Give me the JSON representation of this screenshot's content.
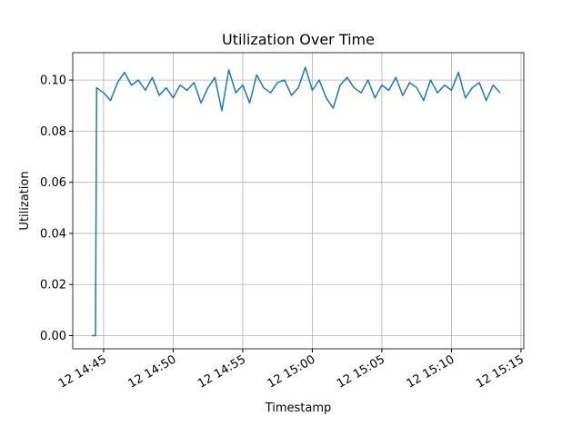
{
  "chart_data": {
    "type": "line",
    "title": "Utilization Over Time",
    "x_label": "Timestamp",
    "y_label": "Utilization",
    "x": [
      "12 14:44:10",
      "12 14:44:25",
      "12 14:44:30",
      "12 14:45:00",
      "12 14:45:30",
      "12 14:46:00",
      "12 14:46:30",
      "12 14:47:00",
      "12 14:47:30",
      "12 14:48:00",
      "12 14:48:30",
      "12 14:49:00",
      "12 14:49:30",
      "12 14:50:00",
      "12 14:50:30",
      "12 14:51:00",
      "12 14:51:30",
      "12 14:52:00",
      "12 14:52:30",
      "12 14:53:00",
      "12 14:53:30",
      "12 14:54:00",
      "12 14:54:30",
      "12 14:55:00",
      "12 14:55:30",
      "12 14:56:00",
      "12 14:56:30",
      "12 14:57:00",
      "12 14:57:30",
      "12 14:58:00",
      "12 14:58:30",
      "12 14:59:00",
      "12 14:59:30",
      "12 15:00:00",
      "12 15:00:30",
      "12 15:01:00",
      "12 15:01:30",
      "12 15:02:00",
      "12 15:02:30",
      "12 15:03:00",
      "12 15:03:30",
      "12 15:04:00",
      "12 15:04:30",
      "12 15:05:00",
      "12 15:05:30",
      "12 15:06:00",
      "12 15:06:30",
      "12 15:07:00",
      "12 15:07:30",
      "12 15:08:00",
      "12 15:08:30",
      "12 15:09:00",
      "12 15:09:30",
      "12 15:10:00",
      "12 15:10:30",
      "12 15:11:00",
      "12 15:11:30",
      "12 15:12:00",
      "12 15:12:30",
      "12 15:13:00",
      "12 15:13:30"
    ],
    "values": [
      0,
      0,
      0.097,
      0.095,
      0.092,
      0.099,
      0.103,
      0.098,
      0.1,
      0.096,
      0.101,
      0.094,
      0.097,
      0.093,
      0.098,
      0.096,
      0.099,
      0.091,
      0.097,
      0.101,
      0.088,
      0.104,
      0.095,
      0.098,
      0.091,
      0.102,
      0.097,
      0.095,
      0.099,
      0.1,
      0.094,
      0.097,
      0.105,
      0.096,
      0.1,
      0.093,
      0.089,
      0.098,
      0.101,
      0.097,
      0.095,
      0.1,
      0.093,
      0.098,
      0.096,
      0.101,
      0.094,
      0.099,
      0.097,
      0.092,
      0.1,
      0.095,
      0.098,
      0.096,
      0.103,
      0.093,
      0.097,
      0.099,
      0.092,
      0.098,
      0.095
    ],
    "color": "#1f77b4",
    "xlim": [
      "12 14:42:47",
      "12 15:15:12"
    ],
    "xticks": [
      "12 14:45",
      "12 14:50",
      "12 14:55",
      "12 15:00",
      "12 15:05",
      "12 15:10",
      "12 15:15"
    ],
    "ylim": [
      -0.00515,
      0.1107
    ],
    "yticks": [
      {
        "value": 0,
        "label": "0.00"
      },
      {
        "value": 0.02,
        "label": "0.02"
      },
      {
        "value": 0.04,
        "label": "0.04"
      },
      {
        "value": 0.06,
        "label": "0.06"
      },
      {
        "value": 0.08,
        "label": "0.08"
      },
      {
        "value": 0.1,
        "label": "0.10"
      }
    ],
    "grid": true
  }
}
